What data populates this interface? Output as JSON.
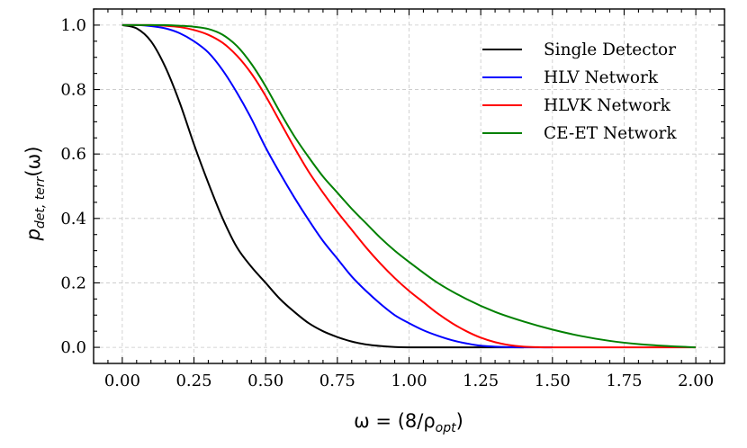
{
  "chart_data": {
    "type": "line",
    "xlabel": {
      "prefix": "ω = (8/ρ",
      "sub": "opt",
      "suffix": ")"
    },
    "ylabel": {
      "prefix": "p",
      "sub": "det, terr",
      "suffix": "(ω)"
    },
    "xlim": [
      -0.1,
      2.1
    ],
    "ylim": [
      -0.05,
      1.05
    ],
    "x_ticks": [
      0.0,
      0.25,
      0.5,
      0.75,
      1.0,
      1.25,
      1.5,
      1.75,
      2.0
    ],
    "x_tick_labels": [
      "0.00",
      "0.25",
      "0.50",
      "0.75",
      "1.00",
      "1.25",
      "1.50",
      "1.75",
      "2.00"
    ],
    "y_ticks": [
      0.0,
      0.2,
      0.4,
      0.6,
      0.8,
      1.0
    ],
    "y_tick_labels": [
      "0.0",
      "0.2",
      "0.4",
      "0.6",
      "0.8",
      "1.0"
    ],
    "grid": true,
    "legend_position": "top-right",
    "series": [
      {
        "name": "Single Detector",
        "color": "#000000",
        "x": [
          0,
          0.05,
          0.1,
          0.15,
          0.2,
          0.25,
          0.3,
          0.35,
          0.4,
          0.45,
          0.5,
          0.55,
          0.6,
          0.65,
          0.7,
          0.75,
          0.8,
          0.85,
          0.9,
          0.95,
          1.0,
          1.1,
          1.2,
          1.3,
          1.4
        ],
        "y": [
          1.0,
          0.99,
          0.95,
          0.87,
          0.76,
          0.63,
          0.51,
          0.4,
          0.31,
          0.25,
          0.2,
          0.15,
          0.11,
          0.075,
          0.05,
          0.032,
          0.018,
          0.009,
          0.004,
          0.001,
          0.0,
          0.0,
          0.0,
          0.0,
          0.0
        ]
      },
      {
        "name": "HLV Network",
        "color": "#0000ff",
        "x": [
          0,
          0.05,
          0.1,
          0.15,
          0.2,
          0.25,
          0.3,
          0.35,
          0.4,
          0.45,
          0.5,
          0.55,
          0.6,
          0.65,
          0.7,
          0.75,
          0.8,
          0.85,
          0.9,
          0.95,
          1.0,
          1.05,
          1.1,
          1.15,
          1.2,
          1.25,
          1.3,
          1.35,
          1.4,
          1.5
        ],
        "y": [
          1.0,
          1.0,
          0.997,
          0.99,
          0.975,
          0.95,
          0.915,
          0.86,
          0.79,
          0.71,
          0.62,
          0.54,
          0.465,
          0.395,
          0.33,
          0.275,
          0.22,
          0.175,
          0.135,
          0.1,
          0.075,
          0.053,
          0.036,
          0.022,
          0.012,
          0.005,
          0.002,
          0.0005,
          0.0,
          0.0
        ]
      },
      {
        "name": "HLVK Network",
        "color": "#ff0000",
        "x": [
          0,
          0.05,
          0.1,
          0.15,
          0.2,
          0.25,
          0.3,
          0.35,
          0.4,
          0.45,
          0.5,
          0.55,
          0.6,
          0.65,
          0.7,
          0.75,
          0.8,
          0.85,
          0.9,
          0.95,
          1.0,
          1.05,
          1.1,
          1.15,
          1.2,
          1.25,
          1.3,
          1.35,
          1.4,
          1.45,
          1.5,
          1.75,
          2.0
        ],
        "y": [
          1.0,
          1.0,
          1.0,
          0.998,
          0.994,
          0.985,
          0.97,
          0.945,
          0.905,
          0.85,
          0.78,
          0.7,
          0.62,
          0.545,
          0.48,
          0.42,
          0.365,
          0.31,
          0.26,
          0.215,
          0.175,
          0.14,
          0.105,
          0.075,
          0.05,
          0.03,
          0.016,
          0.007,
          0.002,
          0.0005,
          0.0,
          0.0,
          0.0
        ]
      },
      {
        "name": "CE-ET Network",
        "color": "#008000",
        "x": [
          0,
          0.05,
          0.1,
          0.15,
          0.2,
          0.25,
          0.3,
          0.35,
          0.4,
          0.45,
          0.5,
          0.55,
          0.6,
          0.65,
          0.7,
          0.75,
          0.8,
          0.85,
          0.9,
          0.95,
          1.0,
          1.1,
          1.2,
          1.3,
          1.4,
          1.5,
          1.6,
          1.7,
          1.8,
          1.9,
          2.0
        ],
        "y": [
          1.0,
          1.0,
          1.0,
          1.0,
          0.998,
          0.995,
          0.988,
          0.97,
          0.935,
          0.88,
          0.81,
          0.73,
          0.655,
          0.59,
          0.53,
          0.48,
          0.43,
          0.385,
          0.34,
          0.3,
          0.265,
          0.2,
          0.15,
          0.11,
          0.08,
          0.055,
          0.035,
          0.02,
          0.01,
          0.004,
          0.0
        ]
      }
    ]
  }
}
